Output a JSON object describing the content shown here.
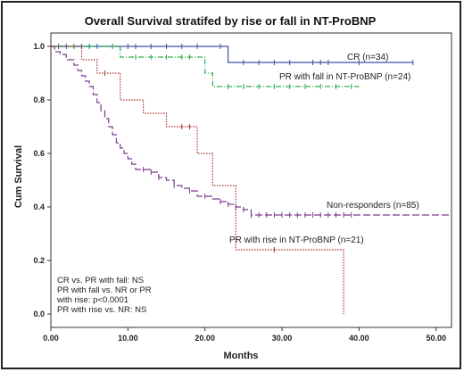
{
  "chart_data": {
    "type": "line",
    "title": "Overall Survival stratifed by rise or fall in NT-ProBNP",
    "xlabel": "Months",
    "ylabel": "Cum Survival",
    "xlim": [
      0,
      52
    ],
    "ylim": [
      -0.05,
      1.05
    ],
    "x_ticks": [
      "0.00",
      "10.00",
      "20.00",
      "30.00",
      "40.00",
      "50.00"
    ],
    "y_ticks": [
      "0.0",
      "0.2",
      "0.4",
      "0.6",
      "0.8",
      "1.0"
    ],
    "legend": "inline labels next to curves",
    "series": [
      {
        "name": "CR (n=34)",
        "color": "#3a50a8",
        "style": "solid",
        "steps": [
          [
            0,
            1.0
          ],
          [
            23,
            1.0
          ],
          [
            23,
            0.94
          ],
          [
            47,
            0.94
          ]
        ],
        "censor_x": [
          1,
          2,
          3,
          4,
          5,
          6,
          8,
          10,
          11,
          13,
          15,
          17,
          19,
          22,
          25,
          27,
          29,
          31,
          34,
          35,
          36,
          40,
          47
        ]
      },
      {
        "name": "PR with fall in NT-ProBNP (n=24)",
        "color": "#2fb04a",
        "style": "dashdot",
        "steps": [
          [
            0,
            1.0
          ],
          [
            9,
            1.0
          ],
          [
            9,
            0.96
          ],
          [
            20,
            0.96
          ],
          [
            20,
            0.9
          ],
          [
            21,
            0.9
          ],
          [
            21,
            0.85
          ],
          [
            40,
            0.85
          ]
        ],
        "censor_x": [
          3,
          5,
          8,
          11,
          13,
          15,
          17,
          18,
          23,
          25,
          27,
          29,
          31,
          33,
          35,
          37,
          39
        ]
      },
      {
        "name": "Non-responders (n=85)",
        "color": "#7b3c8e",
        "style": "longdash",
        "steps": [
          [
            0,
            1.0
          ],
          [
            0.5,
            0.98
          ],
          [
            1.2,
            0.97
          ],
          [
            2,
            0.95
          ],
          [
            3,
            0.93
          ],
          [
            3.5,
            0.91
          ],
          [
            4,
            0.89
          ],
          [
            4.5,
            0.87
          ],
          [
            5,
            0.85
          ],
          [
            5.5,
            0.82
          ],
          [
            6,
            0.79
          ],
          [
            6.5,
            0.76
          ],
          [
            7,
            0.73
          ],
          [
            7.5,
            0.7
          ],
          [
            8,
            0.67
          ],
          [
            8.5,
            0.64
          ],
          [
            9,
            0.62
          ],
          [
            9.5,
            0.6
          ],
          [
            10,
            0.58
          ],
          [
            10.5,
            0.56
          ],
          [
            11,
            0.54
          ],
          [
            13,
            0.53
          ],
          [
            14,
            0.51
          ],
          [
            15,
            0.5
          ],
          [
            16,
            0.48
          ],
          [
            17,
            0.47
          ],
          [
            18,
            0.46
          ],
          [
            19,
            0.44
          ],
          [
            21,
            0.43
          ],
          [
            22,
            0.42
          ],
          [
            23,
            0.41
          ],
          [
            24,
            0.4
          ],
          [
            25,
            0.39
          ],
          [
            26,
            0.37
          ],
          [
            52,
            0.37
          ]
        ],
        "censor_x": [
          12,
          13,
          14,
          16,
          18,
          20,
          22,
          23,
          24,
          25,
          26,
          27,
          28,
          29,
          30,
          31,
          32,
          33,
          34,
          35,
          36,
          37,
          38,
          39
        ]
      },
      {
        "name": "PR with rise in NT-ProBNP (n=21)",
        "color": "#a83232",
        "style": "dotted",
        "steps": [
          [
            0,
            1.0
          ],
          [
            4,
            1.0
          ],
          [
            4,
            0.95
          ],
          [
            6,
            0.95
          ],
          [
            6,
            0.9
          ],
          [
            9,
            0.9
          ],
          [
            9,
            0.8
          ],
          [
            12,
            0.8
          ],
          [
            12,
            0.75
          ],
          [
            15,
            0.75
          ],
          [
            15,
            0.7
          ],
          [
            19,
            0.7
          ],
          [
            19,
            0.6
          ],
          [
            21,
            0.6
          ],
          [
            21,
            0.48
          ],
          [
            24,
            0.48
          ],
          [
            24,
            0.24
          ],
          [
            38,
            0.24
          ],
          [
            38,
            0.0
          ]
        ],
        "censor_x": [
          7,
          17,
          18,
          29
        ]
      }
    ],
    "annotations": [
      "CR vs. PR with fall: NS",
      "PR with fall vs. NR or PR",
      "with rise: p<0.0001",
      "PR with rise vs. NR: NS"
    ]
  }
}
